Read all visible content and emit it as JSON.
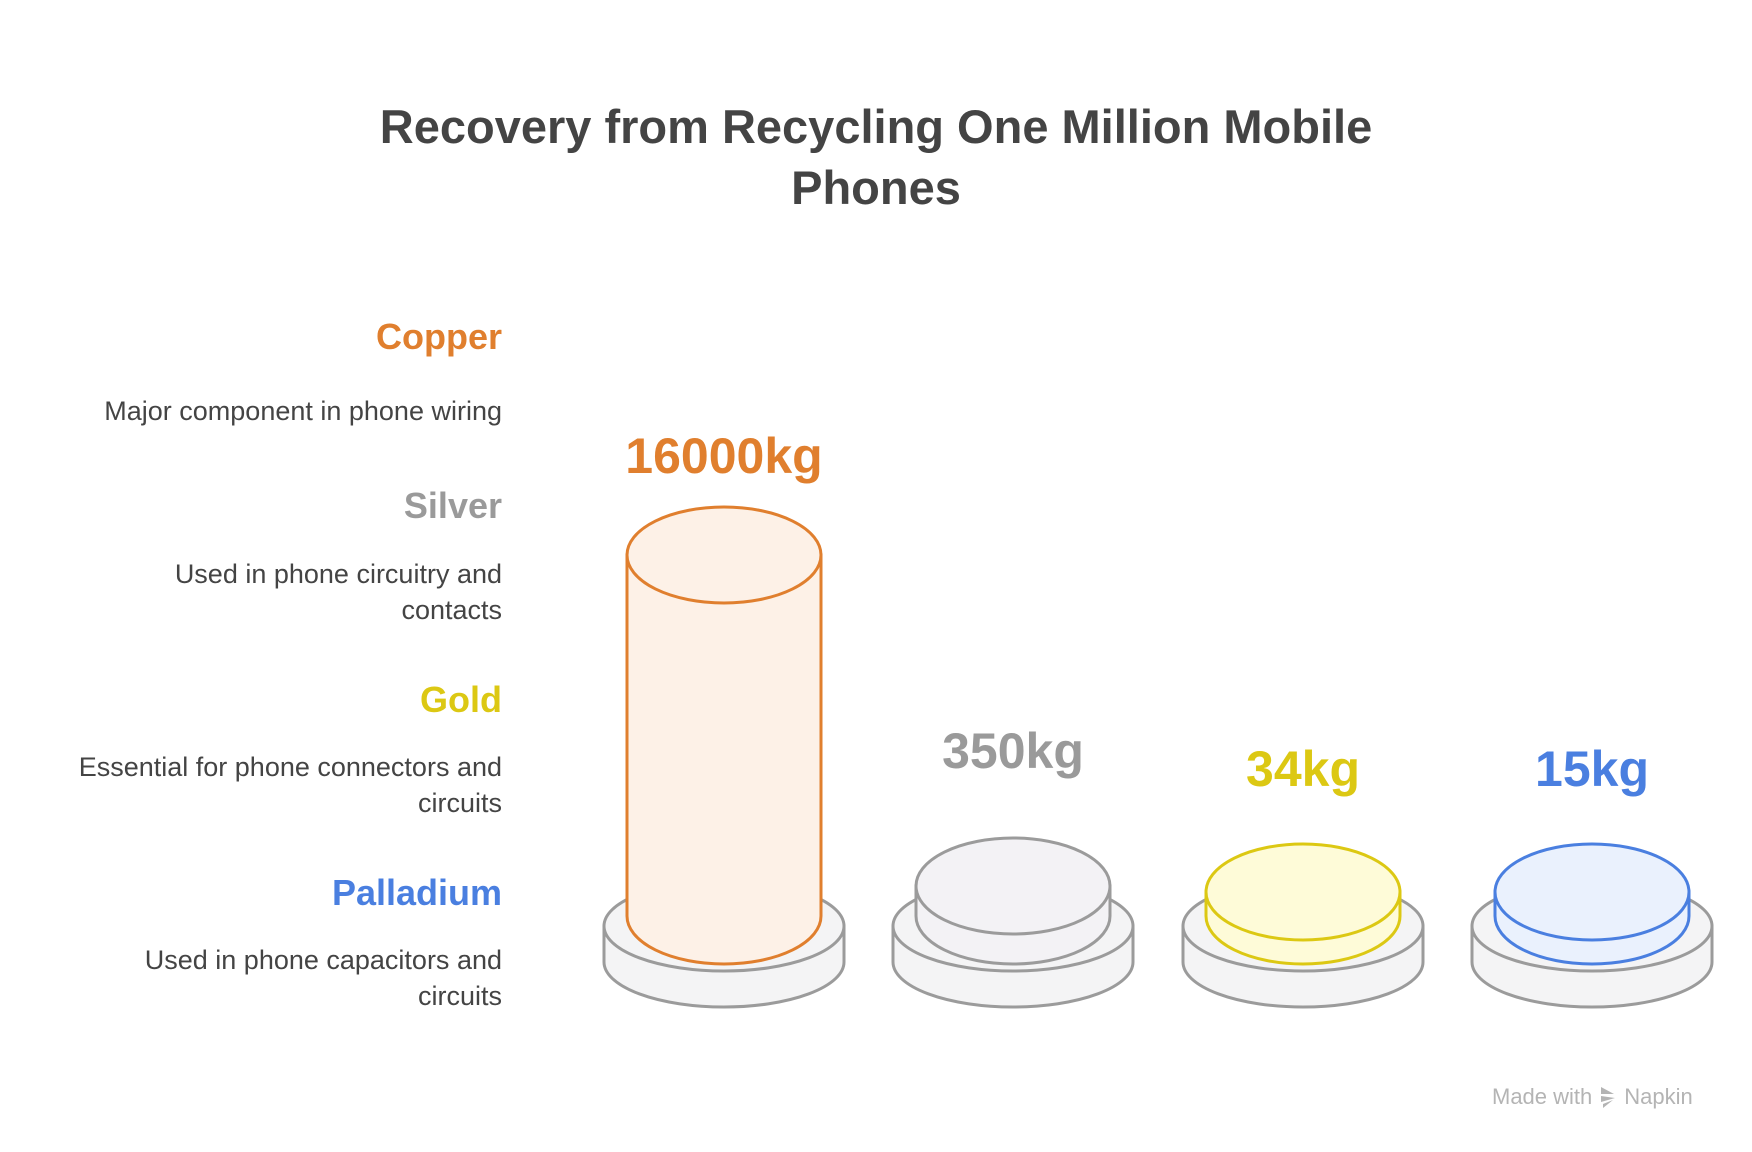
{
  "chart_data": {
    "type": "bar",
    "title": "Recovery from Recycling One Million Mobile Phones",
    "categories": [
      "Copper",
      "Silver",
      "Gold",
      "Palladium"
    ],
    "values": [
      16000,
      350,
      34,
      15
    ],
    "unit": "kg",
    "value_labels": [
      "16000kg",
      "350kg",
      "34kg",
      "15kg"
    ],
    "descriptions": [
      "Major component in phone wiring",
      "Used in phone circuitry and contacts",
      "Essential for phone connectors and circuits",
      "Used in phone capacitors and circuits"
    ],
    "colors": [
      "#E07F2E",
      "#9A9A9A",
      "#DCC813",
      "#4A7FE0"
    ],
    "fills": [
      "#FDF1E7",
      "#F3F2F5",
      "#FEFBD8",
      "#EAF1FD"
    ],
    "legend": "left"
  },
  "footer": {
    "made_with": "Made with",
    "brand": "Napkin",
    "icon": "napkin-logo-icon"
  }
}
